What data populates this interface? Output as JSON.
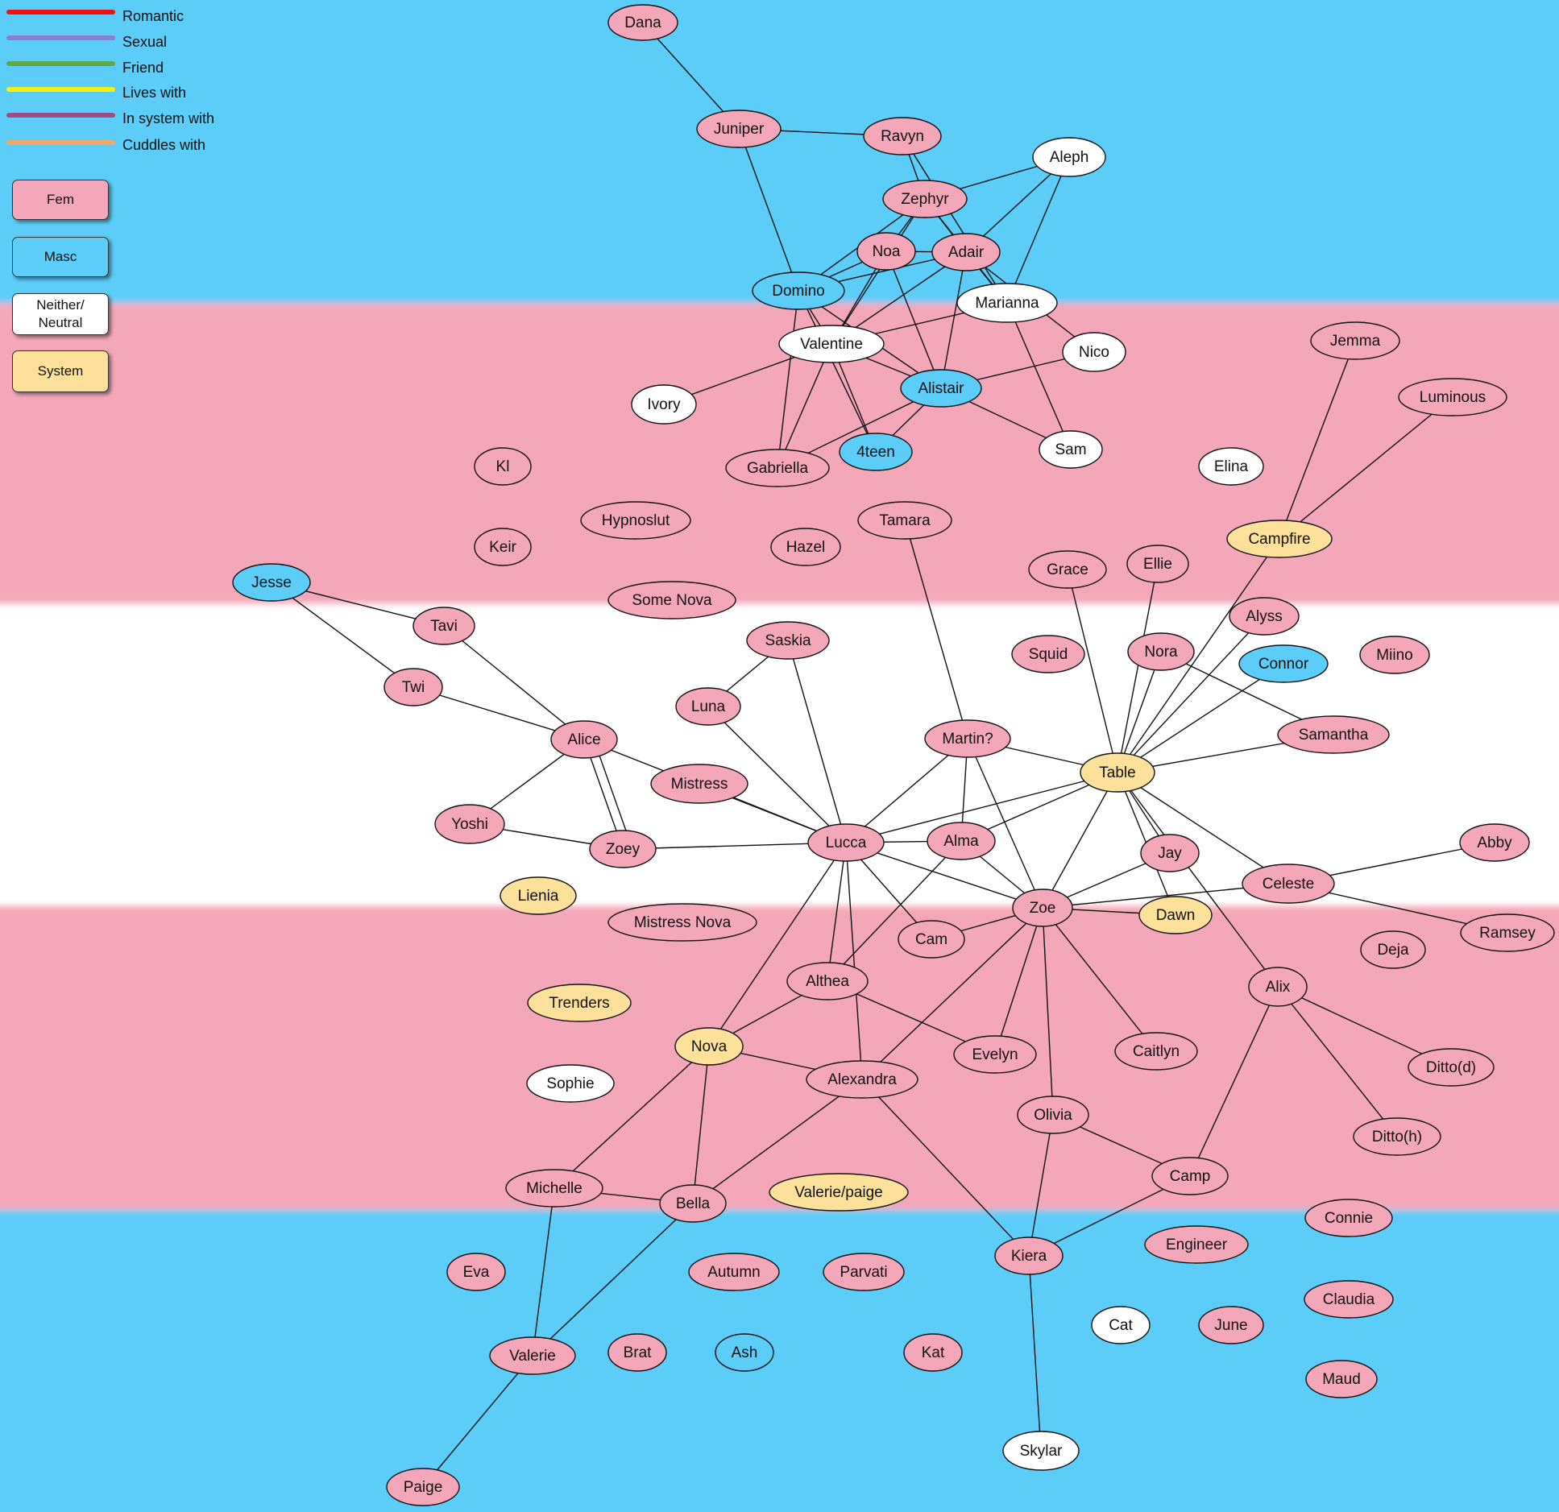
{
  "legend": {
    "relationships": [
      {
        "label": "Romantic",
        "color": "#ee1111"
      },
      {
        "label": "Sexual",
        "color": "#8a7fd0"
      },
      {
        "label": "Friend",
        "color": "#5fa84a"
      },
      {
        "label": "Lives with",
        "color": "#f2f20a"
      },
      {
        "label": "In system with",
        "color": "#9c4d86"
      },
      {
        "label": "Cuddles with",
        "color": "#f0a86a"
      }
    ],
    "categories": [
      {
        "label": "Fem",
        "color": "#f4a7b9"
      },
      {
        "label": "Masc",
        "color": "#5bcdf8"
      },
      {
        "label": "Neither/\nNeutral",
        "color": "#ffffff"
      },
      {
        "label": "System",
        "color": "#fde19a"
      }
    ]
  },
  "flag_colors": {
    "blue": "#5bcdf8",
    "pink": "#f4a7b9",
    "white": "#ffffff"
  },
  "node_colors": {
    "fem": "#f4a7b9",
    "masc": "#5bcdf8",
    "neutral": "#ffffff",
    "system": "#fde19a"
  },
  "nodes": [
    {
      "id": "Dana",
      "label": "Dana",
      "type": "fem"
    },
    {
      "id": "Juniper",
      "label": "Juniper",
      "type": "fem"
    },
    {
      "id": "Ravyn",
      "label": "Ravyn",
      "type": "fem"
    },
    {
      "id": "Aleph",
      "label": "Aleph",
      "type": "neutral"
    },
    {
      "id": "Zephyr",
      "label": "Zephyr",
      "type": "fem"
    },
    {
      "id": "Noa",
      "label": "Noa",
      "type": "fem"
    },
    {
      "id": "Adair",
      "label": "Adair",
      "type": "fem"
    },
    {
      "id": "Domino",
      "label": "Domino",
      "type": "masc"
    },
    {
      "id": "Marianna",
      "label": "Marianna",
      "type": "neutral"
    },
    {
      "id": "Valentine",
      "label": "Valentine",
      "type": "neutral"
    },
    {
      "id": "Nico",
      "label": "Nico",
      "type": "neutral"
    },
    {
      "id": "Alistair",
      "label": "Alistair",
      "type": "masc"
    },
    {
      "id": "Ivory",
      "label": "Ivory",
      "type": "neutral"
    },
    {
      "id": "Jemma",
      "label": "Jemma",
      "type": "fem"
    },
    {
      "id": "Luminous",
      "label": "Luminous",
      "type": "fem"
    },
    {
      "id": "Kl",
      "label": "Kl",
      "type": "fem"
    },
    {
      "id": "Gabriella",
      "label": "Gabriella",
      "type": "fem"
    },
    {
      "id": "4teen",
      "label": "4teen",
      "type": "masc"
    },
    {
      "id": "Sam",
      "label": "Sam",
      "type": "neutral"
    },
    {
      "id": "Elina",
      "label": "Elina",
      "type": "neutral"
    },
    {
      "id": "Hypnoslut",
      "label": "Hypnoslut",
      "type": "fem"
    },
    {
      "id": "Tamara",
      "label": "Tamara",
      "type": "fem"
    },
    {
      "id": "Campfire",
      "label": "Campfire",
      "type": "system"
    },
    {
      "id": "Keir",
      "label": "Keir",
      "type": "fem"
    },
    {
      "id": "Hazel",
      "label": "Hazel",
      "type": "fem"
    },
    {
      "id": "Grace",
      "label": "Grace",
      "type": "fem"
    },
    {
      "id": "Ellie",
      "label": "Ellie",
      "type": "fem"
    },
    {
      "id": "Jesse",
      "label": "Jesse",
      "type": "masc"
    },
    {
      "id": "Some Nova",
      "label": "Some Nova",
      "type": "fem"
    },
    {
      "id": "Alyss",
      "label": "Alyss",
      "type": "fem"
    },
    {
      "id": "Tavi",
      "label": "Tavi",
      "type": "fem"
    },
    {
      "id": "Saskia",
      "label": "Saskia",
      "type": "fem"
    },
    {
      "id": "Squid",
      "label": "Squid",
      "type": "fem"
    },
    {
      "id": "Nora",
      "label": "Nora",
      "type": "fem"
    },
    {
      "id": "Connor",
      "label": "Connor",
      "type": "masc"
    },
    {
      "id": "Miino",
      "label": "Miino",
      "type": "fem"
    },
    {
      "id": "Twi",
      "label": "Twi",
      "type": "fem"
    },
    {
      "id": "Luna",
      "label": "Luna",
      "type": "fem"
    },
    {
      "id": "Samantha",
      "label": "Samantha",
      "type": "fem"
    },
    {
      "id": "Alice",
      "label": "Alice",
      "type": "fem"
    },
    {
      "id": "Martin?",
      "label": "Martin?",
      "type": "fem"
    },
    {
      "id": "Table",
      "label": "Table",
      "type": "system"
    },
    {
      "id": "Mistress",
      "label": "Mistress",
      "type": "fem"
    },
    {
      "id": "Yoshi",
      "label": "Yoshi",
      "type": "fem"
    },
    {
      "id": "Abby",
      "label": "Abby",
      "type": "fem"
    },
    {
      "id": "Lucca",
      "label": "Lucca",
      "type": "fem"
    },
    {
      "id": "Alma",
      "label": "Alma",
      "type": "fem"
    },
    {
      "id": "Zoey",
      "label": "Zoey",
      "type": "fem"
    },
    {
      "id": "Jay",
      "label": "Jay",
      "type": "fem"
    },
    {
      "id": "Celeste",
      "label": "Celeste",
      "type": "fem"
    },
    {
      "id": "Lienia",
      "label": "Lienia",
      "type": "system"
    },
    {
      "id": "Zoe",
      "label": "Zoe",
      "type": "fem"
    },
    {
      "id": "Dawn",
      "label": "Dawn",
      "type": "system"
    },
    {
      "id": "Mistress Nova",
      "label": "Mistress Nova",
      "type": "fem"
    },
    {
      "id": "Cam",
      "label": "Cam",
      "type": "fem"
    },
    {
      "id": "Ramsey",
      "label": "Ramsey",
      "type": "fem"
    },
    {
      "id": "Deja",
      "label": "Deja",
      "type": "fem"
    },
    {
      "id": "Althea",
      "label": "Althea",
      "type": "fem"
    },
    {
      "id": "Alix",
      "label": "Alix",
      "type": "fem"
    },
    {
      "id": "Trenders",
      "label": "Trenders",
      "type": "system"
    },
    {
      "id": "Nova",
      "label": "Nova",
      "type": "system"
    },
    {
      "id": "Evelyn",
      "label": "Evelyn",
      "type": "fem"
    },
    {
      "id": "Caitlyn",
      "label": "Caitlyn",
      "type": "fem"
    },
    {
      "id": "Ditto(d)",
      "label": "Ditto(d)",
      "type": "fem"
    },
    {
      "id": "Alexandra",
      "label": "Alexandra",
      "type": "fem"
    },
    {
      "id": "Sophie",
      "label": "Sophie",
      "type": "neutral"
    },
    {
      "id": "Olivia",
      "label": "Olivia",
      "type": "fem"
    },
    {
      "id": "Ditto(h)",
      "label": "Ditto(h)",
      "type": "fem"
    },
    {
      "id": "Camp",
      "label": "Camp",
      "type": "fem"
    },
    {
      "id": "Michelle",
      "label": "Michelle",
      "type": "fem"
    },
    {
      "id": "Bella",
      "label": "Bella",
      "type": "fem"
    },
    {
      "id": "Valerie/paige",
      "label": "Valerie/paige",
      "type": "system"
    },
    {
      "id": "Connie",
      "label": "Connie",
      "type": "fem"
    },
    {
      "id": "Engineer",
      "label": "Engineer",
      "type": "fem"
    },
    {
      "id": "Kiera",
      "label": "Kiera",
      "type": "fem"
    },
    {
      "id": "Eva",
      "label": "Eva",
      "type": "fem"
    },
    {
      "id": "Autumn",
      "label": "Autumn",
      "type": "fem"
    },
    {
      "id": "Parvati",
      "label": "Parvati",
      "type": "fem"
    },
    {
      "id": "Claudia",
      "label": "Claudia",
      "type": "fem"
    },
    {
      "id": "Cat",
      "label": "Cat",
      "type": "neutral"
    },
    {
      "id": "June",
      "label": "June",
      "type": "fem"
    },
    {
      "id": "Valerie",
      "label": "Valerie",
      "type": "fem"
    },
    {
      "id": "Brat",
      "label": "Brat",
      "type": "fem"
    },
    {
      "id": "Ash",
      "label": "Ash",
      "type": "masc"
    },
    {
      "id": "Kat",
      "label": "Kat",
      "type": "fem"
    },
    {
      "id": "Maud",
      "label": "Maud",
      "type": "fem"
    },
    {
      "id": "Skylar",
      "label": "Skylar",
      "type": "neutral"
    },
    {
      "id": "Paige",
      "label": "Paige",
      "type": "fem"
    }
  ],
  "edges": [
    [
      "Dana",
      "Juniper"
    ],
    [
      "Juniper",
      "Ravyn"
    ],
    [
      "Juniper",
      "Domino"
    ],
    [
      "Ravyn",
      "Zephyr"
    ],
    [
      "Ravyn",
      "Marianna"
    ],
    [
      "Aleph",
      "Zephyr"
    ],
    [
      "Aleph",
      "Adair"
    ],
    [
      "Aleph",
      "Marianna"
    ],
    [
      "Zephyr",
      "Noa"
    ],
    [
      "Zephyr",
      "Adair"
    ],
    [
      "Zephyr",
      "Domino"
    ],
    [
      "Zephyr",
      "Marianna"
    ],
    [
      "Zephyr",
      "Valentine"
    ],
    [
      "Noa",
      "Adair"
    ],
    [
      "Noa",
      "Domino"
    ],
    [
      "Noa",
      "Alistair"
    ],
    [
      "Noa",
      "Valentine"
    ],
    [
      "Adair",
      "Domino"
    ],
    [
      "Adair",
      "Marianna"
    ],
    [
      "Adair",
      "Valentine"
    ],
    [
      "Adair",
      "Alistair"
    ],
    [
      "Adair",
      "Nico"
    ],
    [
      "Domino",
      "Valentine"
    ],
    [
      "Domino",
      "Alistair"
    ],
    [
      "Domino",
      "Gabriella"
    ],
    [
      "Domino",
      "4teen"
    ],
    [
      "Marianna",
      "Valentine"
    ],
    [
      "Marianna",
      "Sam"
    ],
    [
      "Valentine",
      "Ivory"
    ],
    [
      "Valentine",
      "Alistair"
    ],
    [
      "Valentine",
      "Gabriella"
    ],
    [
      "Valentine",
      "4teen"
    ],
    [
      "Alistair",
      "Nico"
    ],
    [
      "Alistair",
      "Sam"
    ],
    [
      "Alistair",
      "Gabriella"
    ],
    [
      "Alistair",
      "4teen"
    ],
    [
      "Jemma",
      "Campfire"
    ],
    [
      "Luminous",
      "Campfire"
    ],
    [
      "Campfire",
      "Table"
    ],
    [
      "Tamara",
      "Martin?"
    ],
    [
      "Grace",
      "Table"
    ],
    [
      "Ellie",
      "Table"
    ],
    [
      "Alyss",
      "Table"
    ],
    [
      "Jesse",
      "Tavi"
    ],
    [
      "Jesse",
      "Twi"
    ],
    [
      "Tavi",
      "Alice"
    ],
    [
      "Twi",
      "Alice"
    ],
    [
      "Saskia",
      "Luna"
    ],
    [
      "Saskia",
      "Lucca"
    ],
    [
      "Luna",
      "Lucca"
    ],
    [
      "Nora",
      "Table"
    ],
    [
      "Nora",
      "Samantha"
    ],
    [
      "Connor",
      "Table"
    ],
    [
      "Samantha",
      "Table"
    ],
    [
      "Alice",
      "Zoey"
    ],
    [
      "Alice",
      "Zoey"
    ],
    [
      "Alice",
      "Yoshi"
    ],
    [
      "Alice",
      "Lucca"
    ],
    [
      "Yoshi",
      "Zoey"
    ],
    [
      "Zoey",
      "Lucca"
    ],
    [
      "Mistress",
      "Lucca"
    ],
    [
      "Martin?",
      "Table"
    ],
    [
      "Martin?",
      "Lucca"
    ],
    [
      "Martin?",
      "Alma"
    ],
    [
      "Martin?",
      "Zoe"
    ],
    [
      "Table",
      "Lucca"
    ],
    [
      "Table",
      "Alma"
    ],
    [
      "Table",
      "Zoe"
    ],
    [
      "Table",
      "Jay"
    ],
    [
      "Table",
      "Dawn"
    ],
    [
      "Table",
      "Celeste"
    ],
    [
      "Table",
      "Alix"
    ],
    [
      "Lucca",
      "Alma"
    ],
    [
      "Lucca",
      "Zoe"
    ],
    [
      "Lucca",
      "Cam"
    ],
    [
      "Lucca",
      "Althea"
    ],
    [
      "Lucca",
      "Alexandra"
    ],
    [
      "Lucca",
      "Nova"
    ],
    [
      "Alma",
      "Zoe"
    ],
    [
      "Alma",
      "Althea"
    ],
    [
      "Jay",
      "Zoe"
    ],
    [
      "Zoe",
      "Celeste"
    ],
    [
      "Zoe",
      "Dawn"
    ],
    [
      "Zoe",
      "Cam"
    ],
    [
      "Zoe",
      "Evelyn"
    ],
    [
      "Zoe",
      "Caitlyn"
    ],
    [
      "Zoe",
      "Olivia"
    ],
    [
      "Zoe",
      "Alexandra"
    ],
    [
      "Celeste",
      "Abby"
    ],
    [
      "Celeste",
      "Ramsey"
    ],
    [
      "Alix",
      "Ditto(d)"
    ],
    [
      "Alix",
      "Ditto(h)"
    ],
    [
      "Alix",
      "Camp"
    ],
    [
      "Althea",
      "Nova"
    ],
    [
      "Althea",
      "Evelyn"
    ],
    [
      "Nova",
      "Alexandra"
    ],
    [
      "Nova",
      "Michelle"
    ],
    [
      "Nova",
      "Bella"
    ],
    [
      "Alexandra",
      "Bella"
    ],
    [
      "Alexandra",
      "Kiera"
    ],
    [
      "Olivia",
      "Camp"
    ],
    [
      "Olivia",
      "Kiera"
    ],
    [
      "Camp",
      "Kiera"
    ],
    [
      "Michelle",
      "Bella"
    ],
    [
      "Michelle",
      "Valerie"
    ],
    [
      "Bella",
      "Valerie"
    ],
    [
      "Kiera",
      "Skylar"
    ],
    [
      "Valerie",
      "Paige"
    ]
  ]
}
